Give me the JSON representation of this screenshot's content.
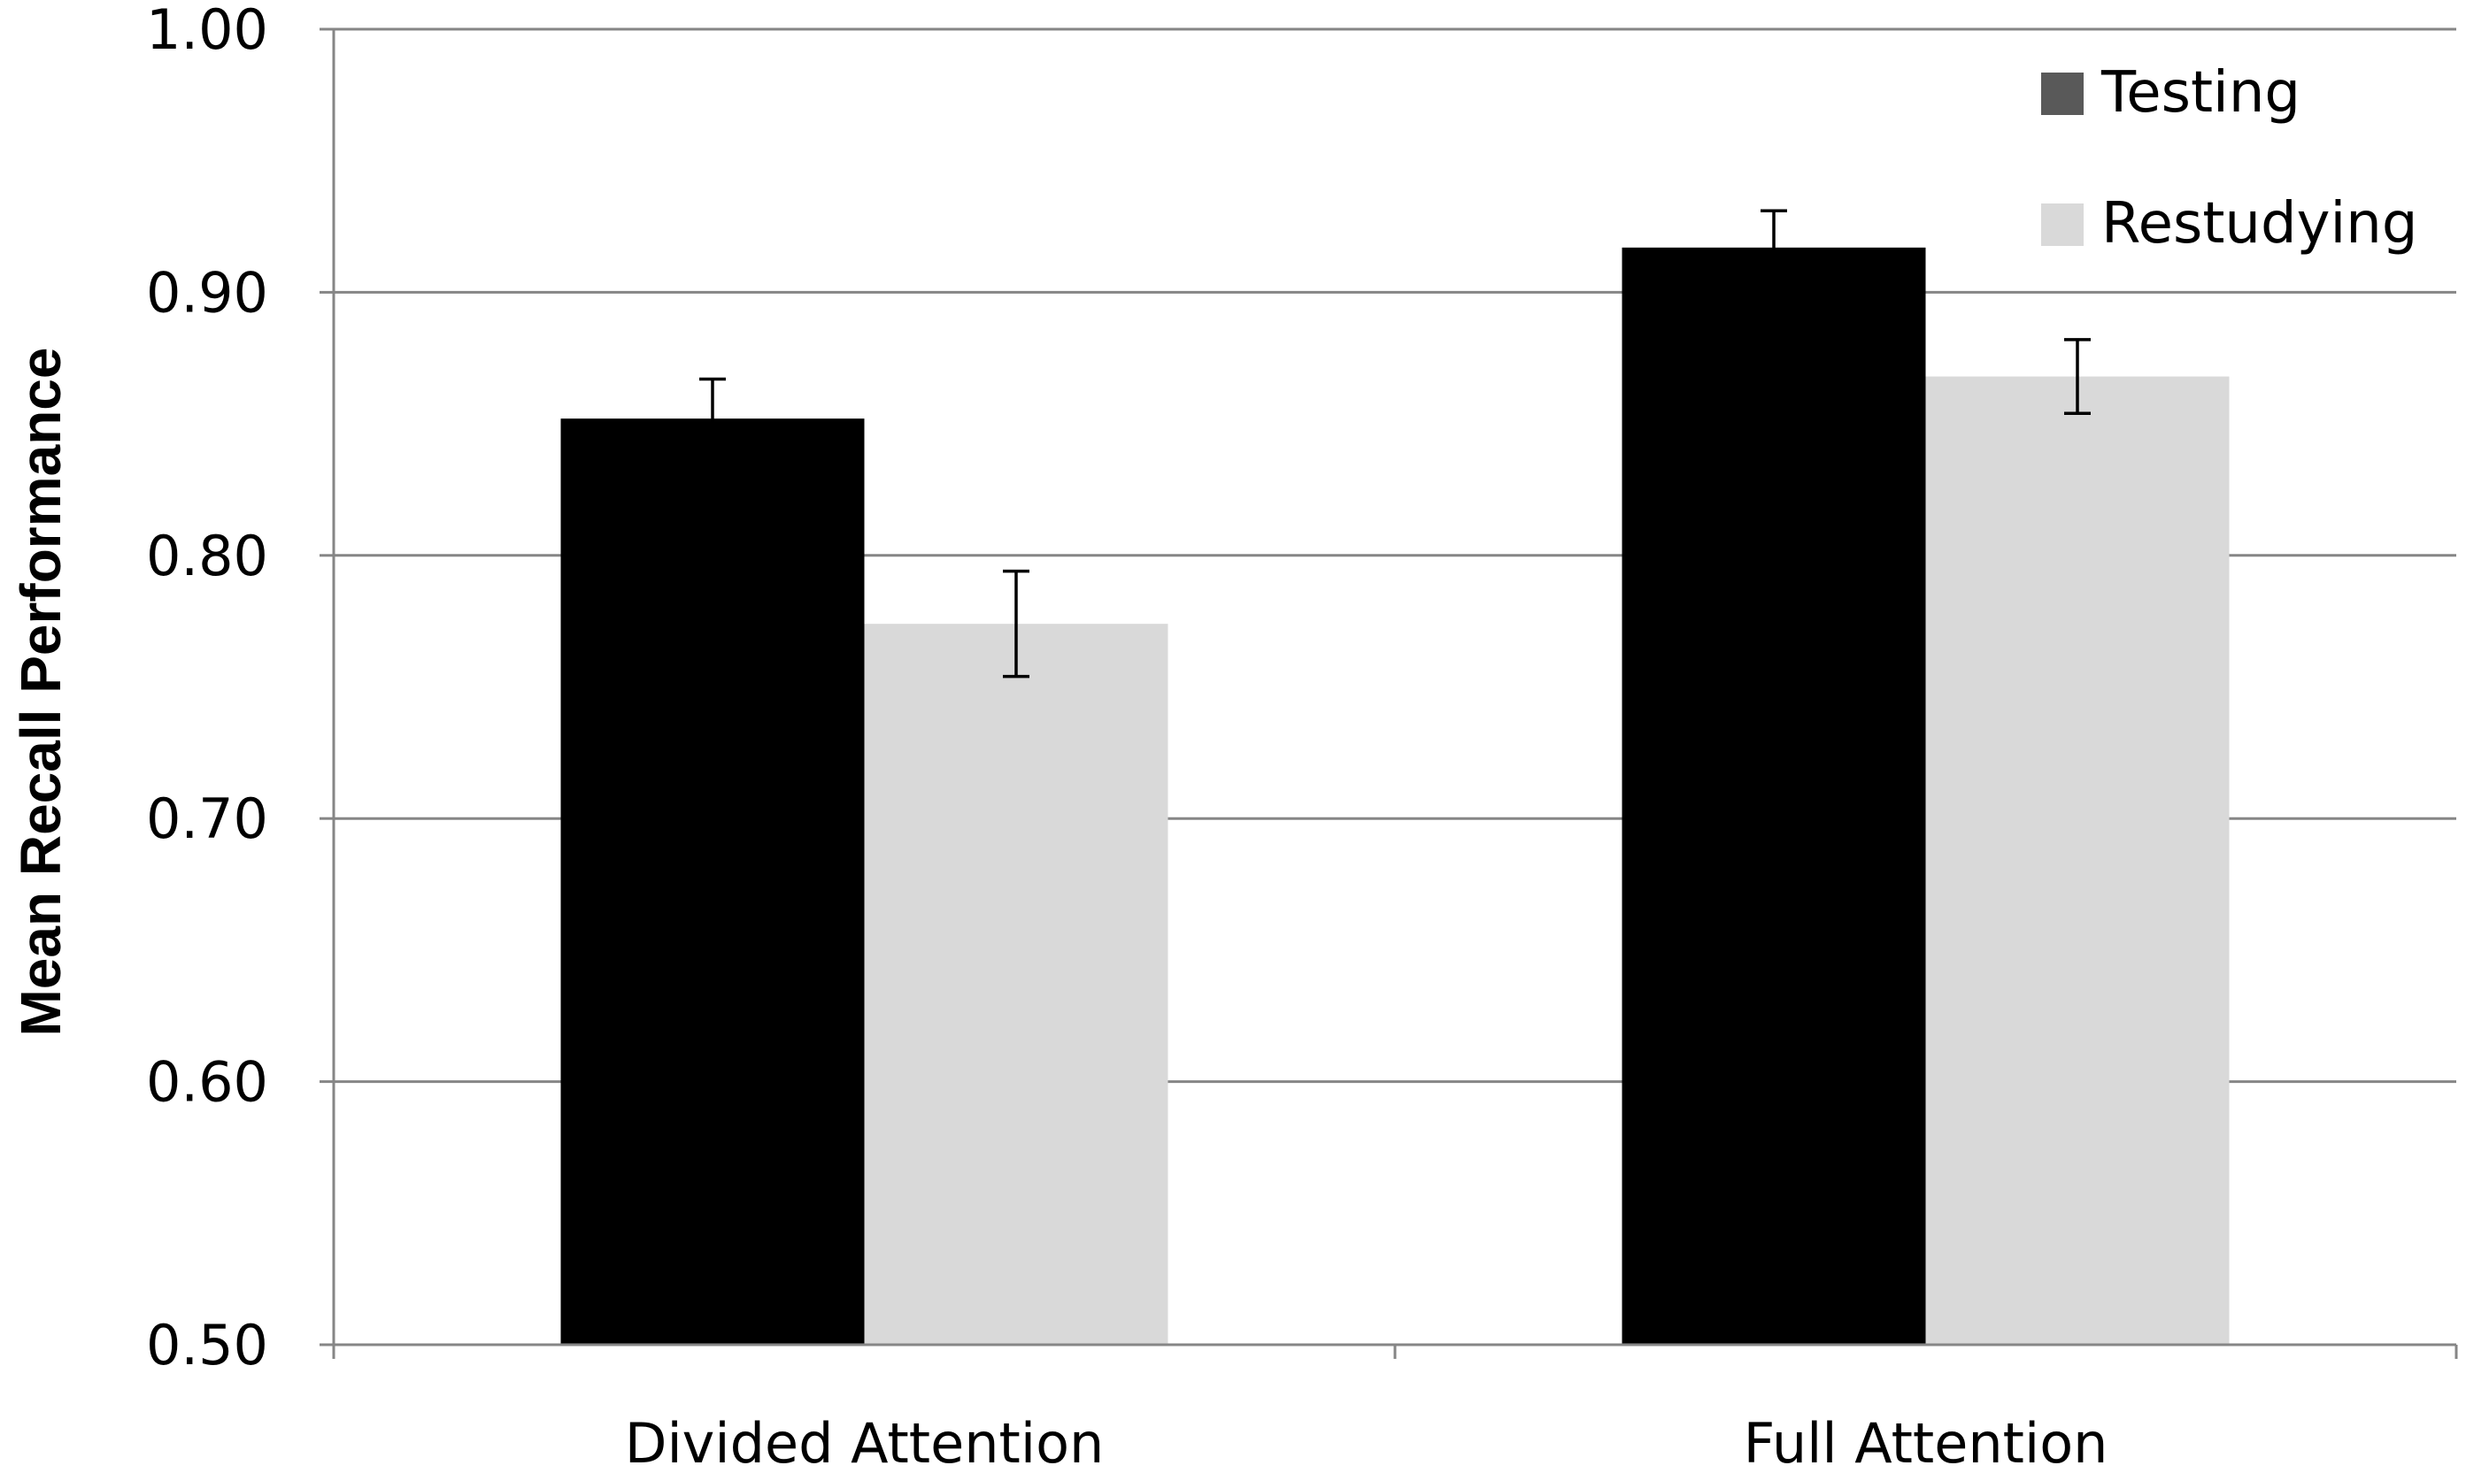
{
  "chart_data": {
    "type": "bar",
    "categories": [
      "Divided Attention",
      "Full Attention"
    ],
    "series": [
      {
        "name": "Testing",
        "color": "#000000",
        "legend_color": "#595959",
        "values": [
          0.852,
          0.917
        ],
        "error": [
          0.015,
          0.014
        ]
      },
      {
        "name": "Restudying",
        "color": "#d9d9d9",
        "legend_color": "#d9d9d9",
        "values": [
          0.774,
          0.868
        ],
        "error": [
          0.02,
          0.014
        ]
      }
    ],
    "ylabel": "Mean Recall Performance",
    "xlabel": "",
    "ylim": [
      0.5,
      1.0
    ],
    "yticks": [
      "0.50",
      "0.60",
      "0.70",
      "0.80",
      "0.90",
      "1.00"
    ],
    "ytick_values": [
      0.5,
      0.6,
      0.7,
      0.8,
      0.9,
      1.0
    ],
    "grid": true,
    "legend_position": "top-right",
    "gridline_color": "#868686"
  }
}
